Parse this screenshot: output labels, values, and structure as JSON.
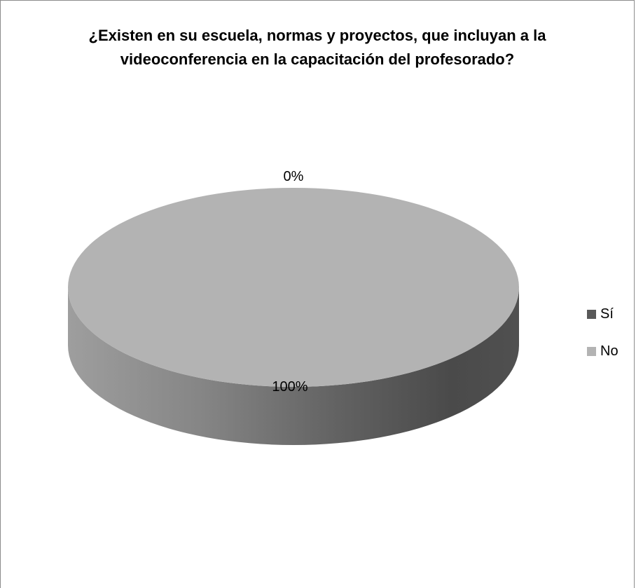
{
  "chart_data": {
    "type": "pie",
    "title": "¿Existen en su escuela, normas y proyectos, que incluyan a la videoconferencia en la capacitación del profesorado?",
    "three_d": true,
    "legend_placement": "right",
    "categories": [
      "Sí",
      "No"
    ],
    "values": [
      0,
      100
    ],
    "data_labels": [
      "0%",
      "100%"
    ],
    "colors": [
      "#595959",
      "#b3b3b3"
    ]
  }
}
